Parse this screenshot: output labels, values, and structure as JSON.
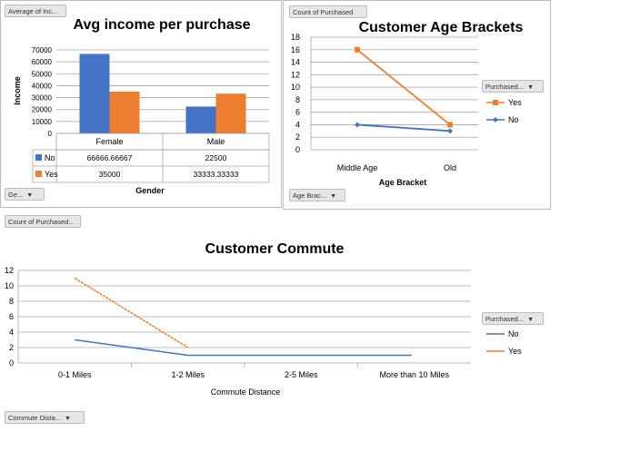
{
  "charts": {
    "income": {
      "title": "Avg income per purchase",
      "ylabel": "Income",
      "xlabel": "Gender",
      "value_chip": "Average of Inc...",
      "axis_chip": "Ge...",
      "yticks": [
        "0",
        "10000",
        "20000",
        "30000",
        "40000",
        "50000",
        "60000",
        "70000"
      ],
      "categories": [
        "Female",
        "Male"
      ],
      "table": [
        {
          "label": "No",
          "color": "#4472c4",
          "values": [
            "66666.66667",
            "22500"
          ]
        },
        {
          "label": "Yes",
          "color": "#ed7d31",
          "values": [
            "35000",
            "33333.33333"
          ]
        }
      ]
    },
    "age": {
      "title": "Customer Age Brackets",
      "xlabel": "Age Bracket",
      "value_chip": "Count of Purchased",
      "axis_chip": "Age Brac...",
      "legend_chip": "Purchased...",
      "yticks": [
        "0",
        "2",
        "4",
        "6",
        "8",
        "10",
        "12",
        "14",
        "16",
        "18"
      ],
      "categories": [
        "Middle Age",
        "Old"
      ],
      "legend": [
        "Yes",
        "No"
      ]
    },
    "commute": {
      "title": "Customer Commute",
      "xlabel": "Commute Distance",
      "value_chip": "Count of Purchased...",
      "axis_chip": "Commute Dista...",
      "legend_chip": "Purchased...",
      "yticks": [
        "0",
        "2",
        "4",
        "6",
        "8",
        "10",
        "12"
      ],
      "categories": [
        "0-1 Miles",
        "1-2 Miles",
        "2-5 Miles",
        "More than 10 Miles"
      ],
      "legend": [
        "No",
        "Yes"
      ]
    }
  },
  "colors": {
    "no": "#4472c4",
    "yes": "#ed7d31",
    "grid": "#a6a6a6"
  },
  "chart_data": [
    {
      "type": "bar",
      "title": "Avg income per purchase",
      "xlabel": "Gender",
      "ylabel": "Income",
      "categories": [
        "Female",
        "Male"
      ],
      "ylim": [
        0,
        70000
      ],
      "series": [
        {
          "name": "No",
          "values": [
            66666.66667,
            22500
          ]
        },
        {
          "name": "Yes",
          "values": [
            35000,
            33333.33333
          ]
        }
      ],
      "grid": true
    },
    {
      "type": "line",
      "title": "Customer Age Brackets",
      "xlabel": "Age Bracket",
      "ylabel": "",
      "categories": [
        "Middle Age",
        "Old"
      ],
      "ylim": [
        0,
        18
      ],
      "series": [
        {
          "name": "Yes",
          "values": [
            16,
            4
          ]
        },
        {
          "name": "No",
          "values": [
            4,
            3
          ]
        }
      ],
      "legend": "right",
      "grid": true
    },
    {
      "type": "line",
      "title": "Customer Commute",
      "xlabel": "Commute Distance",
      "ylabel": "",
      "categories": [
        "0-1 Miles",
        "1-2 Miles",
        "2-5 Miles",
        "More than 10 Miles"
      ],
      "ylim": [
        0,
        12
      ],
      "series": [
        {
          "name": "No",
          "values": [
            3,
            1,
            1,
            1
          ]
        },
        {
          "name": "Yes",
          "values": [
            11,
            2,
            null,
            null
          ]
        }
      ],
      "legend": "right",
      "grid": true
    }
  ]
}
